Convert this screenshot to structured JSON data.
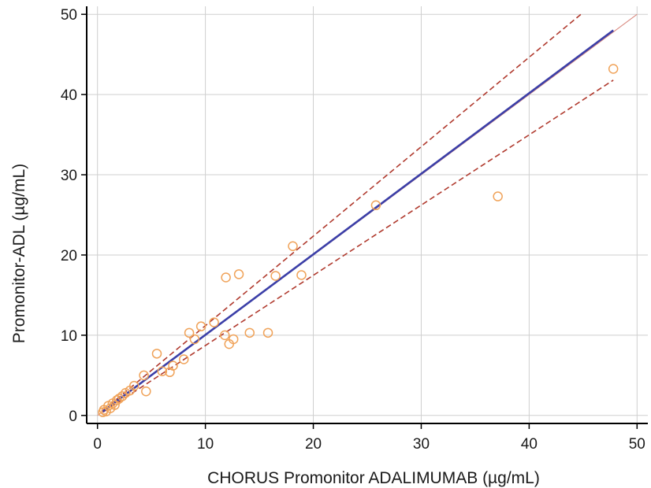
{
  "chart_data": {
    "type": "scatter",
    "title": "",
    "xlabel": "CHORUS Promonitor ADALIMUMAB  (µg/mL)",
    "ylabel": "Promonitor-ADL (µg/mL)",
    "xlim": [
      -1,
      51
    ],
    "ylim": [
      -1,
      51
    ],
    "xticks": [
      0,
      10,
      20,
      30,
      40,
      50
    ],
    "yticks": [
      0,
      10,
      20,
      30,
      40,
      50
    ],
    "grid": true,
    "legend": "none",
    "colors": {
      "points": "#f0a35a",
      "fit": "#3b3fa8",
      "confidence": "#b03a2e",
      "identity": "#d98a80",
      "grid": "#cfcfcf",
      "axis": "#000000"
    },
    "points": [
      {
        "x": 0.5,
        "y": 0.4
      },
      {
        "x": 0.6,
        "y": 0.7
      },
      {
        "x": 0.8,
        "y": 0.5
      },
      {
        "x": 1.0,
        "y": 1.2
      },
      {
        "x": 1.2,
        "y": 0.9
      },
      {
        "x": 1.4,
        "y": 1.5
      },
      {
        "x": 1.6,
        "y": 1.3
      },
      {
        "x": 1.8,
        "y": 1.9
      },
      {
        "x": 2.0,
        "y": 2.1
      },
      {
        "x": 2.3,
        "y": 2.4
      },
      {
        "x": 2.6,
        "y": 2.8
      },
      {
        "x": 3.0,
        "y": 3.1
      },
      {
        "x": 3.4,
        "y": 3.7
      },
      {
        "x": 4.3,
        "y": 5.0
      },
      {
        "x": 4.5,
        "y": 3.0
      },
      {
        "x": 5.5,
        "y": 7.7
      },
      {
        "x": 6.0,
        "y": 5.5
      },
      {
        "x": 6.7,
        "y": 5.4
      },
      {
        "x": 7.0,
        "y": 6.2
      },
      {
        "x": 8.0,
        "y": 7.0
      },
      {
        "x": 8.5,
        "y": 10.3
      },
      {
        "x": 9.0,
        "y": 9.5
      },
      {
        "x": 9.6,
        "y": 11.1
      },
      {
        "x": 10.8,
        "y": 11.6
      },
      {
        "x": 11.8,
        "y": 10.0
      },
      {
        "x": 11.9,
        "y": 17.2
      },
      {
        "x": 12.2,
        "y": 8.9
      },
      {
        "x": 12.6,
        "y": 9.5
      },
      {
        "x": 13.1,
        "y": 17.6
      },
      {
        "x": 14.1,
        "y": 10.3
      },
      {
        "x": 15.8,
        "y": 10.3
      },
      {
        "x": 16.5,
        "y": 17.4
      },
      {
        "x": 18.1,
        "y": 21.1
      },
      {
        "x": 18.9,
        "y": 17.5
      },
      {
        "x": 25.8,
        "y": 26.2
      },
      {
        "x": 37.1,
        "y": 27.3
      },
      {
        "x": 47.8,
        "y": 43.2
      }
    ],
    "lines": [
      {
        "role": "regression",
        "x": [
          0.5,
          47.8
        ],
        "y": [
          0.5,
          48.0
        ]
      },
      {
        "role": "upper-confidence",
        "x": [
          0.5,
          44.8
        ],
        "y": [
          0.6,
          50.0
        ]
      },
      {
        "role": "lower-confidence",
        "x": [
          0.5,
          47.8
        ],
        "y": [
          0.4,
          41.8
        ]
      },
      {
        "role": "identity",
        "x": [
          0,
          50
        ],
        "y": [
          0,
          50
        ]
      }
    ]
  }
}
